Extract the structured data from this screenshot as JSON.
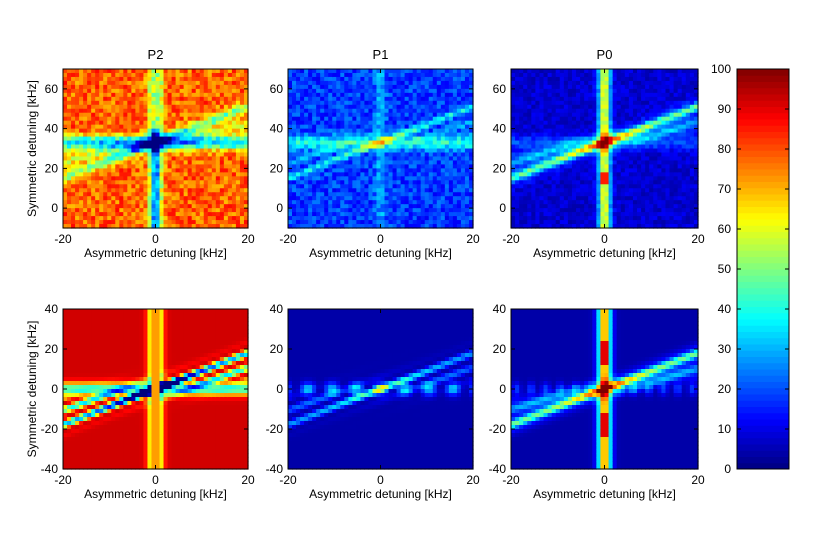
{
  "chart_data": [
    {
      "type": "heatmap",
      "title": "P2",
      "xlabel": "Asymmetric detuning [kHz]",
      "ylabel": "Symmetric detuning [kHz]",
      "xlim": [
        -20,
        20
      ],
      "ylim": [
        -10,
        70
      ],
      "xticks": [
        -20,
        0,
        20
      ],
      "yticks": [
        0,
        20,
        40,
        60
      ],
      "base_level": 78,
      "pattern": "experimental",
      "features": "vertical low-population line at x=0; horizontal low band near y=33; diagonal low stripes"
    },
    {
      "type": "heatmap",
      "title": "P1",
      "xlabel": "Asymmetric detuning [kHz]",
      "ylabel": "",
      "xlim": [
        -20,
        20
      ],
      "ylim": [
        -10,
        70
      ],
      "xticks": [
        -20,
        0,
        20
      ],
      "yticks": [
        0,
        20,
        40,
        60
      ],
      "base_level": 18,
      "pattern": "experimental",
      "features": "weak horizontal band near y=33; diagonal stripes"
    },
    {
      "type": "heatmap",
      "title": "P0",
      "xlabel": "Asymmetric detuning [kHz]",
      "ylabel": "",
      "xlim": [
        -20,
        20
      ],
      "ylim": [
        -10,
        70
      ],
      "xticks": [
        -20,
        0,
        20
      ],
      "yticks": [
        0,
        20,
        40,
        60
      ],
      "base_level": 8,
      "pattern": "experimental",
      "features": "vertical high-population line at x=0; diagonal bright stripe"
    },
    {
      "type": "heatmap",
      "title": "",
      "xlabel": "Asymmetric detuning [kHz]",
      "ylabel": "Symmetric detuning [kHz]",
      "xlim": [
        -20,
        20
      ],
      "ylim": [
        -40,
        40
      ],
      "xticks": [
        -20,
        0,
        20
      ],
      "yticks": [
        -40,
        -20,
        0,
        20,
        40
      ],
      "base_level": 92,
      "pattern": "simulated",
      "features": "vertical line at x=0; horizontal band near y=0; diagonal fringes"
    },
    {
      "type": "heatmap",
      "title": "",
      "xlabel": "Asymmetric detuning [kHz]",
      "ylabel": "",
      "xlim": [
        -20,
        20
      ],
      "ylim": [
        -40,
        40
      ],
      "xticks": [
        -20,
        0,
        20
      ],
      "yticks": [
        -40,
        -20,
        0,
        20,
        40
      ],
      "base_level": 4,
      "pattern": "simulated",
      "features": "faint diagonal fringes; horizontal band near y=0"
    },
    {
      "type": "heatmap",
      "title": "",
      "xlabel": "Asymmetric detuning [kHz]",
      "ylabel": "",
      "xlim": [
        -20,
        20
      ],
      "ylim": [
        -40,
        40
      ],
      "xticks": [
        -20,
        0,
        20
      ],
      "yticks": [
        -40,
        -20,
        0,
        20,
        40
      ],
      "base_level": 4,
      "pattern": "simulated",
      "features": "bright vertical line at x=0; diagonal bright stripe"
    }
  ],
  "colorbar": {
    "colormap": "jet",
    "min": 0,
    "max": 100,
    "ticks": [
      0,
      10,
      20,
      30,
      40,
      50,
      60,
      70,
      80,
      90,
      100
    ]
  }
}
